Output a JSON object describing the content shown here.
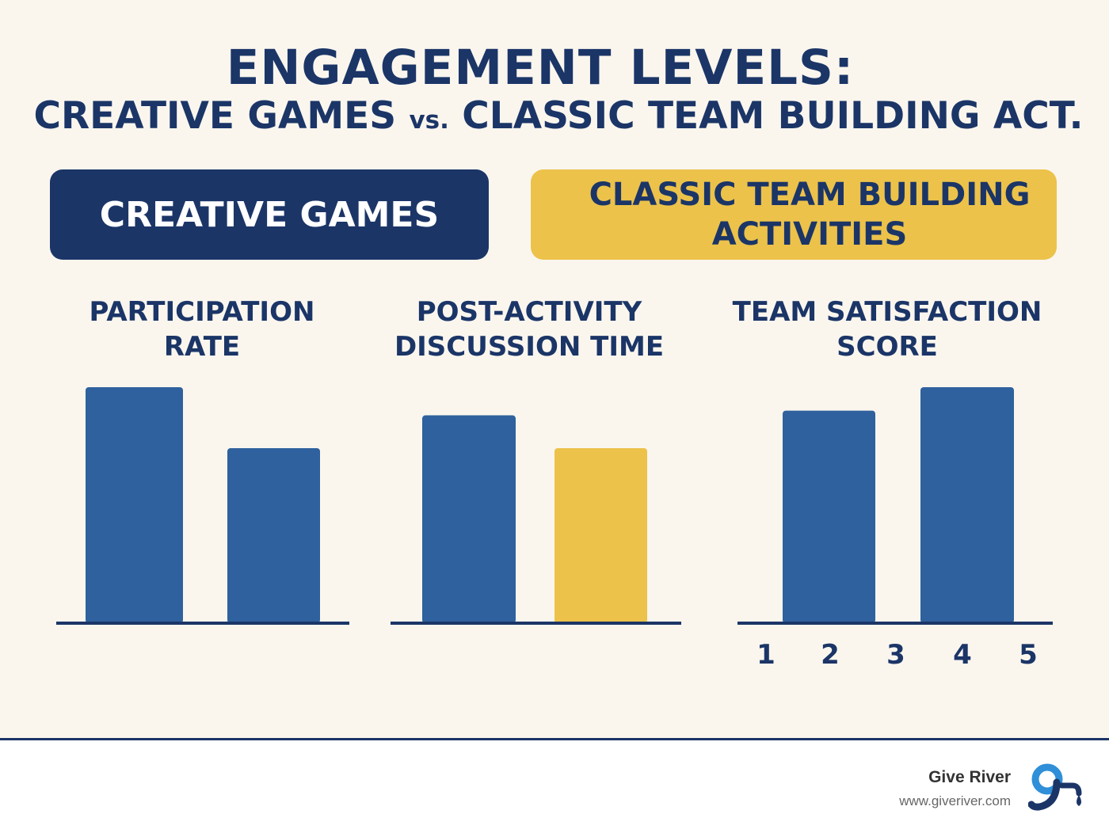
{
  "title": {
    "line1": "ENGAGEMENT LEVELS:",
    "line2_left": "CREATIVE GAMES",
    "line2_vs": "vs.",
    "line2_right": "CLASSIC TEAM BUILDING ACT."
  },
  "legend": [
    {
      "label": "CREATIVE GAMES",
      "color": "#1b3567"
    },
    {
      "label": "CLASSIC TEAM BUILDING ACTIVITIES",
      "color": "#ecc24a"
    }
  ],
  "chart_data": [
    {
      "type": "bar",
      "title": "PARTICIPATION RATE",
      "categories": [
        "",
        ""
      ],
      "values": [
        100,
        74
      ],
      "colors": [
        "#2e619d",
        "#2e619d"
      ],
      "ylim": [
        0,
        100
      ]
    },
    {
      "type": "bar",
      "title": "POST-ACTIVITY DISCUSSION TIME",
      "categories": [
        "",
        ""
      ],
      "values": [
        88,
        74
      ],
      "colors": [
        "#2e619d",
        "#ecc24a"
      ],
      "ylim": [
        0,
        100
      ]
    },
    {
      "type": "bar",
      "title": "TEAM SATISFACTION SCORE",
      "categories": [
        "",
        ""
      ],
      "values": [
        90,
        100
      ],
      "colors": [
        "#2e619d",
        "#2e619d"
      ],
      "ylim": [
        0,
        100
      ],
      "xticks": [
        "1",
        "2",
        "3",
        "4",
        "5"
      ]
    }
  ],
  "footer": {
    "brand": "Give River",
    "url": "www.giveriver.com",
    "logo_icon": "give-river-logo-icon"
  },
  "colors": {
    "navy": "#1b3567",
    "bar_blue": "#2e619d",
    "yellow": "#ecc24a",
    "background": "#faf6ee"
  }
}
